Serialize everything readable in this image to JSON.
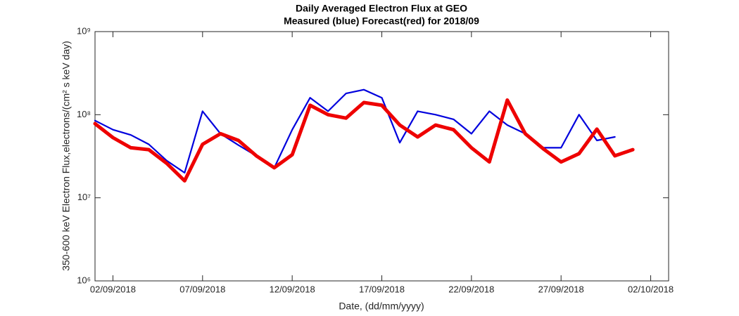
{
  "chart_data": {
    "type": "line",
    "title": "Daily Averaged Electron Flux at GEO",
    "subtitle": "Measured (blue) Forecast(red) for 2018/09",
    "x_label": "Date, (dd/mm/yyyy)",
    "y_label": "350-600 keV Electron Flux,electrons/(cm² s keV day)",
    "log_y": true,
    "x": [
      "2018-09-01",
      "2018-09-02",
      "2018-09-03",
      "2018-09-04",
      "2018-09-05",
      "2018-09-06",
      "2018-09-07",
      "2018-09-08",
      "2018-09-09",
      "2018-09-10",
      "2018-09-11",
      "2018-09-12",
      "2018-09-13",
      "2018-09-14",
      "2018-09-15",
      "2018-09-16",
      "2018-09-17",
      "2018-09-18",
      "2018-09-19",
      "2018-09-20",
      "2018-09-21",
      "2018-09-22",
      "2018-09-23",
      "2018-09-24",
      "2018-09-25",
      "2018-09-26",
      "2018-09-27",
      "2018-09-28",
      "2018-09-29",
      "2018-09-30",
      "2018-10-01"
    ],
    "series": [
      {
        "name": "Measured",
        "color": "#0000dd",
        "values": [
          85000000,
          66000000,
          57000000,
          44000000,
          28000000,
          20000000,
          110000000,
          59000000,
          43000000,
          32000000,
          23000000,
          66000000,
          160000000,
          110000000,
          180000000,
          200000000,
          160000000,
          46000000,
          110000000,
          100000000,
          88000000,
          59000000,
          110000000,
          75000000,
          59000000,
          40000000,
          40000000,
          100000000,
          49000000,
          54000000,
          null
        ]
      },
      {
        "name": "Forecast",
        "color": "#ee0000",
        "values": [
          78000000,
          53000000,
          40000000,
          38000000,
          26000000,
          16000000,
          44000000,
          59000000,
          49000000,
          32000000,
          23000000,
          33000000,
          130000000,
          100000000,
          91000000,
          140000000,
          130000000,
          75000000,
          54000000,
          75000000,
          66000000,
          40000000,
          27000000,
          150000000,
          59000000,
          39000000,
          27000000,
          34000000,
          67000000,
          32000000,
          38000000
        ]
      }
    ],
    "xlim": [
      "2018-09-01",
      "2018-10-03"
    ],
    "xticks": [
      {
        "value": "2018-09-02",
        "label": "02/09/2018"
      },
      {
        "value": "2018-09-07",
        "label": "07/09/2018"
      },
      {
        "value": "2018-09-12",
        "label": "12/09/2018"
      },
      {
        "value": "2018-09-17",
        "label": "17/09/2018"
      },
      {
        "value": "2018-09-22",
        "label": "22/09/2018"
      },
      {
        "value": "2018-09-27",
        "label": "27/09/2018"
      },
      {
        "value": "2018-10-02",
        "label": "02/10/2018"
      }
    ],
    "ylim": [
      1000000,
      1000000000
    ],
    "yticks": [
      {
        "value": 1000000,
        "label": "10⁶"
      },
      {
        "value": 10000000,
        "label": "10⁷"
      },
      {
        "value": 100000000,
        "label": "10⁸"
      },
      {
        "value": 1000000000,
        "label": "10⁹"
      }
    ],
    "grid": false
  }
}
